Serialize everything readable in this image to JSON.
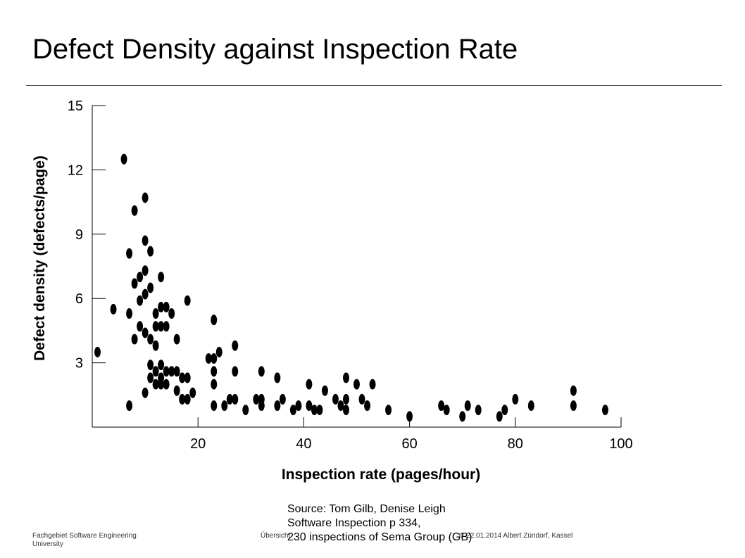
{
  "slide": {
    "title": "Defect Density against Inspection Rate",
    "source_lines": [
      "Source: Tom Gilb, Denise Leigh",
      "Software Inspection p 334,",
      "230 inspections of Sema Group (GB)"
    ]
  },
  "footer": {
    "left_line1": "Fachgebiet Software Engineering",
    "left_line2": "University",
    "center": "Übersicht",
    "right": "© 22.01.2014 Albert Zündorf, Kassel"
  },
  "chart_data": {
    "type": "scatter",
    "xlabel": "Inspection rate (pages/hour)",
    "ylabel": "Defect density (defects/page)",
    "xlim": [
      0,
      100
    ],
    "ylim": [
      0,
      15
    ],
    "xticks": [
      20,
      40,
      60,
      80,
      100
    ],
    "yticks": [
      3,
      6,
      9,
      12,
      15
    ],
    "grid": false,
    "marker_color": "#000000",
    "points": [
      [
        1,
        3.5
      ],
      [
        6,
        12.5
      ],
      [
        4,
        5.5
      ],
      [
        7,
        8.1
      ],
      [
        7,
        5.3
      ],
      [
        7,
        1.0
      ],
      [
        8,
        10.1
      ],
      [
        8,
        6.7
      ],
      [
        8,
        4.1
      ],
      [
        9,
        7.0
      ],
      [
        9,
        5.9
      ],
      [
        9,
        4.7
      ],
      [
        10,
        10.7
      ],
      [
        10,
        8.7
      ],
      [
        10,
        7.3
      ],
      [
        10,
        6.2
      ],
      [
        10,
        4.4
      ],
      [
        10,
        1.6
      ],
      [
        11,
        8.2
      ],
      [
        11,
        6.5
      ],
      [
        11,
        4.1
      ],
      [
        11,
        2.9
      ],
      [
        11,
        2.3
      ],
      [
        12,
        5.3
      ],
      [
        12,
        4.7
      ],
      [
        12,
        3.8
      ],
      [
        12,
        2.6
      ],
      [
        12,
        2.0
      ],
      [
        13,
        7.0
      ],
      [
        13,
        5.6
      ],
      [
        13,
        4.7
      ],
      [
        13,
        2.9
      ],
      [
        13,
        2.3
      ],
      [
        13,
        2.0
      ],
      [
        14,
        5.6
      ],
      [
        14,
        4.7
      ],
      [
        14,
        2.6
      ],
      [
        14,
        2.0
      ],
      [
        15,
        5.3
      ],
      [
        15,
        2.6
      ],
      [
        16,
        4.1
      ],
      [
        16,
        2.6
      ],
      [
        16,
        1.7
      ],
      [
        17,
        2.3
      ],
      [
        17,
        1.3
      ],
      [
        18,
        5.9
      ],
      [
        18,
        2.3
      ],
      [
        18,
        1.3
      ],
      [
        19,
        1.6
      ],
      [
        22,
        3.2
      ],
      [
        23,
        5.0
      ],
      [
        23,
        3.2
      ],
      [
        23,
        2.6
      ],
      [
        23,
        2.0
      ],
      [
        23,
        1.0
      ],
      [
        24,
        3.5
      ],
      [
        25,
        1.0
      ],
      [
        26,
        1.3
      ],
      [
        27,
        3.8
      ],
      [
        27,
        2.6
      ],
      [
        27,
        1.3
      ],
      [
        29,
        0.8
      ],
      [
        31,
        1.3
      ],
      [
        32,
        2.6
      ],
      [
        32,
        1.3
      ],
      [
        32,
        1.0
      ],
      [
        35,
        2.3
      ],
      [
        35,
        1.0
      ],
      [
        36,
        1.3
      ],
      [
        38,
        0.8
      ],
      [
        39,
        1.0
      ],
      [
        41,
        2.0
      ],
      [
        41,
        1.0
      ],
      [
        42,
        0.8
      ],
      [
        43,
        0.8
      ],
      [
        44,
        1.7
      ],
      [
        46,
        1.3
      ],
      [
        47,
        1.0
      ],
      [
        48,
        2.3
      ],
      [
        48,
        1.3
      ],
      [
        48,
        0.8
      ],
      [
        50,
        2.0
      ],
      [
        51,
        1.3
      ],
      [
        52,
        1.0
      ],
      [
        53,
        2.0
      ],
      [
        56,
        0.8
      ],
      [
        60,
        0.5
      ],
      [
        66,
        1.0
      ],
      [
        67,
        0.8
      ],
      [
        70,
        0.5
      ],
      [
        71,
        1.0
      ],
      [
        73,
        0.8
      ],
      [
        77,
        0.5
      ],
      [
        78,
        0.8
      ],
      [
        80,
        1.3
      ],
      [
        83,
        1.0
      ],
      [
        91,
        1.7
      ],
      [
        91,
        1.0
      ],
      [
        97,
        0.8
      ]
    ]
  }
}
